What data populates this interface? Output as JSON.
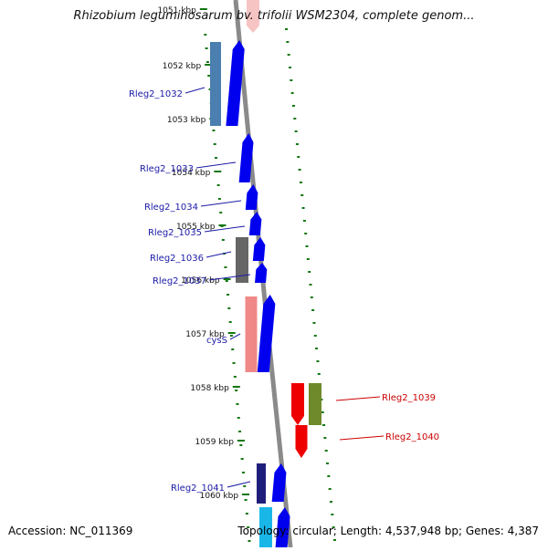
{
  "title": "Rhizobium leguminosarum bv. trifolii WSM2304, complete genom...",
  "footer": {
    "accession": "Accession: NC_011369",
    "summary": "Topology: circular; Length: 4,537,948 bp; Genes: 4,387"
  },
  "colors": {
    "forward_cds": "#0000ee",
    "reverse_cds": "#ee0000",
    "tick": "#117711",
    "backbone": "#8a8a8a",
    "label_forward": "#1a1aa6",
    "label_reverse": "#cc0000"
  },
  "map": {
    "kbp_ticks": [
      "1051 kbp",
      "1052 kbp",
      "1053 kbp",
      "1054 kbp",
      "1055 kbp",
      "1056 kbp",
      "1057 kbp",
      "1058 kbp",
      "1059 kbp",
      "1060 kbp"
    ],
    "forward_genes": [
      {
        "label": "Rleg2_1032",
        "features": [
          "steelblue",
          "blue"
        ]
      },
      {
        "label": "Rleg2_1033",
        "features": [
          "blue"
        ]
      },
      {
        "label": "Rleg2_1034",
        "features": [
          "blue"
        ]
      },
      {
        "label": "Rleg2_1035",
        "features": [
          "blue"
        ]
      },
      {
        "label": "Rleg2_1036",
        "features": [
          "gray",
          "blue"
        ]
      },
      {
        "label": "Rleg2_1037",
        "features": [
          "blue"
        ]
      },
      {
        "label": "cysS",
        "features": [
          "pink",
          "blue"
        ]
      },
      {
        "label": "Rleg2_1041",
        "features": [
          "navy",
          "blue"
        ]
      }
    ],
    "reverse_genes": [
      {
        "label": "Rleg2_1039",
        "features": [
          "red",
          "olive"
        ]
      },
      {
        "label": "Rleg2_1040",
        "features": [
          "red"
        ]
      }
    ]
  }
}
